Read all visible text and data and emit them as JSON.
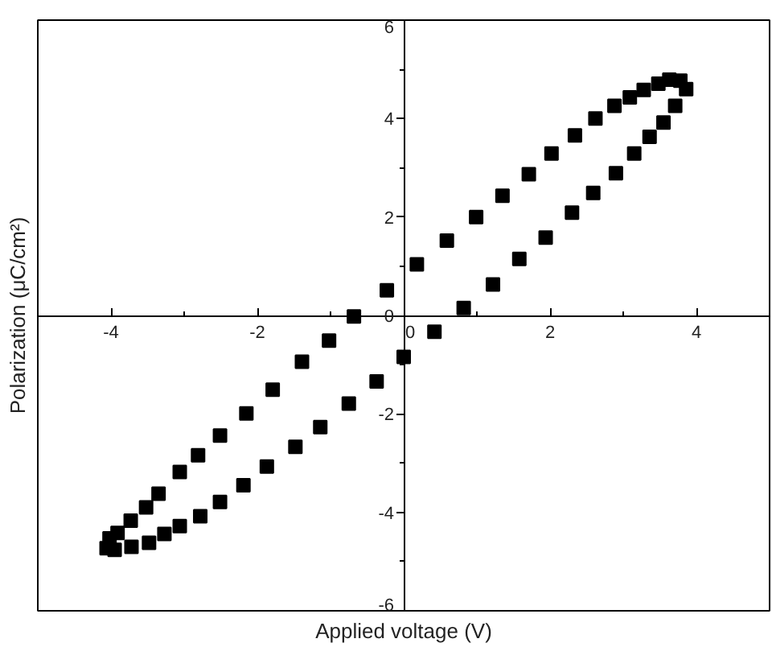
{
  "chart_data": {
    "type": "scatter",
    "xlabel": "Applied voltage (V)",
    "ylabel": "Polarization (μC/cm²)",
    "xlim": [
      -5,
      5
    ],
    "ylim": [
      -6,
      6
    ],
    "xticks": [
      {
        "value": -5,
        "label": null
      },
      -4,
      {
        "value": -3,
        "label": null
      },
      -2,
      {
        "value": -1,
        "label": null
      },
      0,
      {
        "value": 1,
        "label": null
      },
      2,
      {
        "value": 3,
        "label": null
      },
      4,
      {
        "value": 5,
        "label": null
      }
    ],
    "yticks": [
      -6,
      {
        "value": -5,
        "label": null
      },
      -4,
      {
        "value": -3,
        "label": null
      },
      -2,
      {
        "value": -1,
        "label": null
      },
      0,
      {
        "value": 1,
        "label": null
      },
      2,
      {
        "value": 3,
        "label": null
      },
      4,
      {
        "value": 5,
        "label": null
      },
      6
    ],
    "marker": "square",
    "series": [
      {
        "color": "#000000",
        "x": [
          -0.68,
          -0.23,
          0.18,
          0.59,
          0.99,
          1.35,
          1.71,
          2.02,
          2.34,
          2.62,
          2.88,
          3.09,
          3.28,
          3.48,
          3.63,
          3.78,
          3.86,
          3.71,
          3.55,
          3.36,
          3.15,
          2.9,
          2.59,
          2.3,
          1.94,
          1.58,
          1.22,
          0.82,
          0.42,
          0.0,
          -0.37,
          -0.75,
          -1.14,
          -1.48,
          -1.87,
          -2.19,
          -2.51,
          -2.78,
          -3.06,
          -3.27,
          -3.48,
          -3.72,
          -3.95,
          -4.06,
          -4.02,
          -3.91,
          -3.73,
          -3.52,
          -3.35,
          -3.06,
          -2.81,
          -2.51,
          -2.15,
          -1.79,
          -1.39,
          -1.02
        ],
        "values": [
          -0.02,
          0.51,
          1.04,
          1.52,
          2.0,
          2.43,
          2.87,
          3.29,
          3.66,
          4.0,
          4.26,
          4.43,
          4.58,
          4.71,
          4.79,
          4.77,
          4.6,
          4.26,
          3.92,
          3.63,
          3.29,
          2.89,
          2.49,
          2.09,
          1.58,
          1.15,
          0.63,
          0.15,
          -0.33,
          -0.84,
          -1.34,
          -1.79,
          -2.27,
          -2.67,
          -3.07,
          -3.45,
          -3.79,
          -4.08,
          -4.28,
          -4.44,
          -4.62,
          -4.7,
          -4.76,
          -4.73,
          -4.53,
          -4.42,
          -4.17,
          -3.9,
          -3.62,
          -3.18,
          -2.84,
          -2.44,
          -1.99,
          -1.51,
          -0.94,
          -0.51
        ]
      }
    ]
  }
}
